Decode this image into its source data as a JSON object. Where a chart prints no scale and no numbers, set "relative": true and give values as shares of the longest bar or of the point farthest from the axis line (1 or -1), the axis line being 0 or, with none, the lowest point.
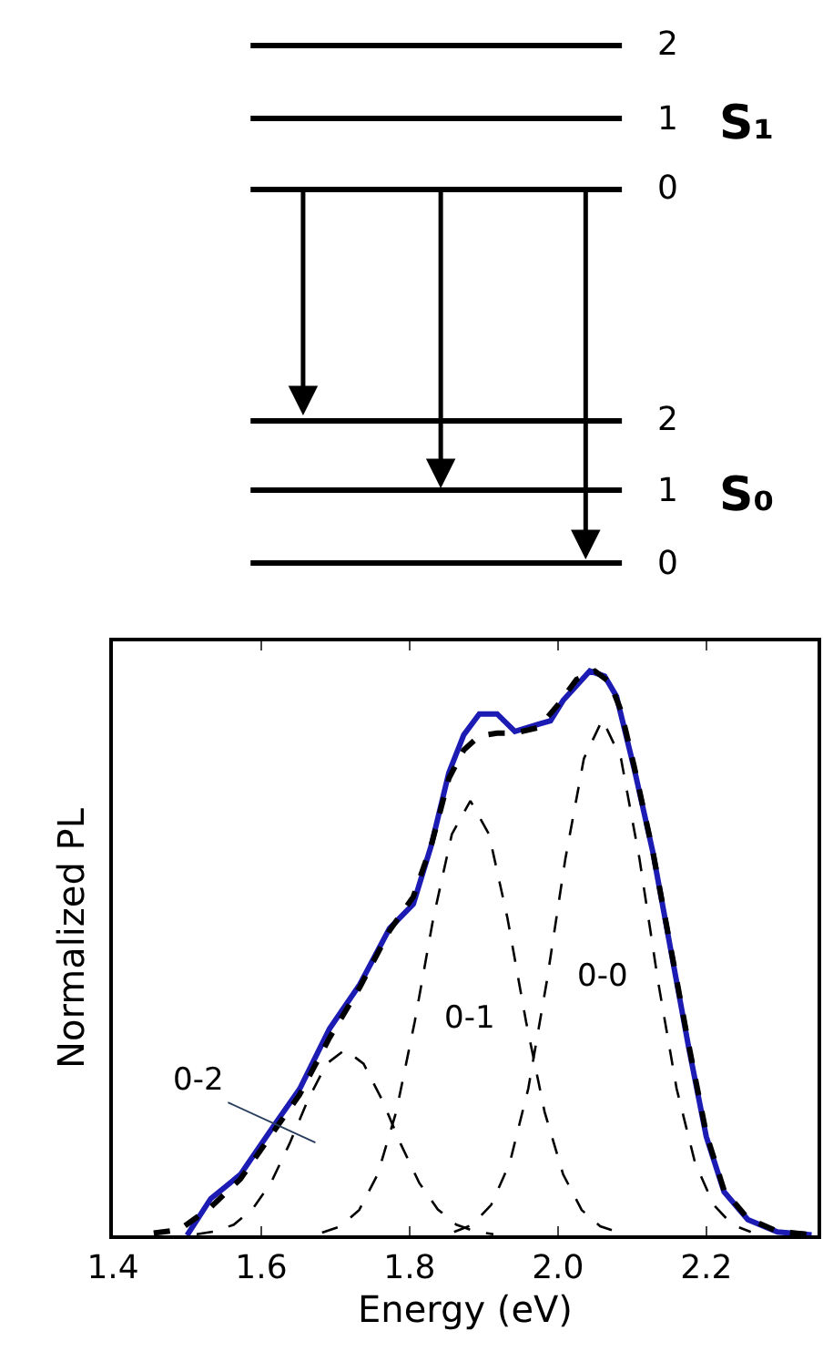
{
  "chart_data": {
    "type": "line",
    "xlabel": "Energy (eV)",
    "ylabel": "Normalized PL",
    "relative": true,
    "tick_labels": "x",
    "legend": false,
    "xlim": [
      1.4,
      2.35
    ],
    "xticks": [
      {
        "value": 1.4,
        "label": "1.4"
      },
      {
        "value": 1.6,
        "label": "1.6"
      },
      {
        "value": 1.8,
        "label": "1.8"
      },
      {
        "value": 2.0,
        "label": "2.0"
      },
      {
        "value": 2.2,
        "label": "2.2"
      }
    ],
    "series": [
      {
        "color": "#1c1cb4",
        "line_style": "solid",
        "x": [
          1.5,
          1.532,
          1.572,
          1.62,
          1.652,
          1.692,
          1.733,
          1.773,
          1.805,
          1.829,
          1.853,
          1.873,
          1.894,
          1.918,
          1.942,
          1.974,
          1.99,
          2.007,
          2.043,
          2.063,
          2.079,
          2.103,
          2.128,
          2.152,
          2.176,
          2.2,
          2.224,
          2.256,
          2.296,
          2.342
        ],
        "values": [
          0,
          0.065,
          0.108,
          0.2,
          0.26,
          0.366,
          0.445,
          0.544,
          0.587,
          0.69,
          0.82,
          0.887,
          0.924,
          0.924,
          0.893,
          0.906,
          0.912,
          0.948,
          1.0,
          0.991,
          0.955,
          0.826,
          0.679,
          0.507,
          0.335,
          0.175,
          0.077,
          0.028,
          0.006,
          0.001
        ]
      },
      {
        "color": "#000000",
        "line_style": "dashed",
        "x": [
          1.455,
          1.49,
          1.532,
          1.572,
          1.62,
          1.652,
          1.692,
          1.733,
          1.773,
          1.805,
          1.829,
          1.853,
          1.873,
          1.894,
          1.918,
          1.942,
          1.974,
          2.0,
          2.025,
          2.05,
          2.07,
          2.085,
          2.103,
          2.128,
          2.152,
          2.176,
          2.2,
          2.224,
          2.256,
          2.296,
          2.342
        ],
        "values": [
          0.004,
          0.01,
          0.05,
          0.1,
          0.19,
          0.25,
          0.35,
          0.44,
          0.54,
          0.6,
          0.69,
          0.81,
          0.86,
          0.885,
          0.89,
          0.89,
          0.9,
          0.94,
          0.985,
          1.0,
          0.98,
          0.93,
          0.83,
          0.68,
          0.51,
          0.34,
          0.18,
          0.08,
          0.03,
          0.007,
          0.001
        ]
      },
      {
        "name": "0-2",
        "color": "#000000",
        "line_style": "dashed",
        "x": [
          1.513,
          1.538,
          1.563,
          1.588,
          1.613,
          1.638,
          1.663,
          1.688,
          1.713,
          1.738,
          1.763,
          1.788,
          1.813,
          1.838,
          1.863,
          1.888,
          1.913
        ],
        "values": [
          0.002,
          0.007,
          0.019,
          0.046,
          0.093,
          0.162,
          0.24,
          0.304,
          0.329,
          0.304,
          0.24,
          0.162,
          0.093,
          0.046,
          0.019,
          0.007,
          0.002
        ]
      },
      {
        "name": "0-1",
        "color": "#000000",
        "line_style": "dashed",
        "x": [
          1.682,
          1.707,
          1.732,
          1.757,
          1.782,
          1.807,
          1.832,
          1.857,
          1.882,
          1.907,
          1.932,
          1.957,
          1.982,
          2.007,
          2.032,
          2.057,
          2.082
        ],
        "values": [
          0.005,
          0.016,
          0.045,
          0.108,
          0.219,
          0.379,
          0.562,
          0.711,
          0.77,
          0.711,
          0.562,
          0.379,
          0.219,
          0.108,
          0.045,
          0.016,
          0.005
        ]
      },
      {
        "name": "0-0",
        "color": "#000000",
        "line_style": "dashed",
        "x": [
          1.86,
          1.885,
          1.91,
          1.935,
          1.96,
          1.985,
          2.01,
          2.035,
          2.06,
          2.085,
          2.11,
          2.135,
          2.16,
          2.185,
          2.21,
          2.235,
          2.26
        ],
        "values": [
          0.006,
          0.019,
          0.054,
          0.128,
          0.26,
          0.45,
          0.667,
          0.845,
          0.914,
          0.845,
          0.667,
          0.45,
          0.26,
          0.128,
          0.054,
          0.019,
          0.006
        ]
      }
    ],
    "annotations": [
      "2",
      "1",
      "0",
      "S₁",
      "2",
      "1",
      "0",
      "S₀"
    ]
  }
}
